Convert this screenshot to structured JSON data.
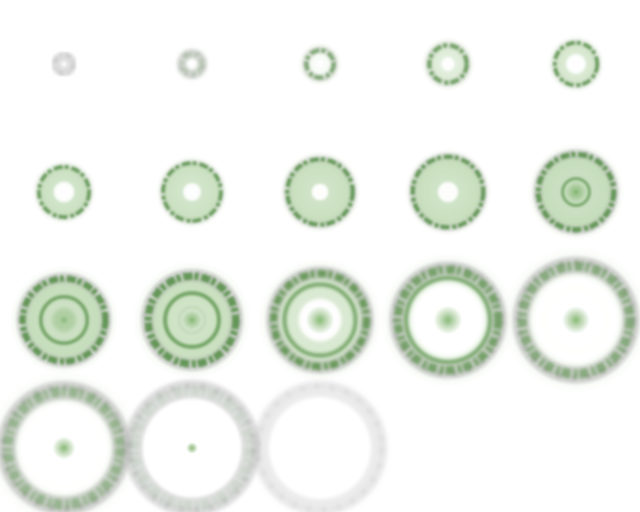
{
  "sprite_sheet": {
    "grid": {
      "columns": 5,
      "rows": 4
    },
    "palette": {
      "background": "#ffffff",
      "green_dark": "#4e8a3e",
      "green_mid": "#7fb26b",
      "green_light": "#c6e0b8",
      "grey_ring": "#8a8a8a",
      "grey_soft": "#b5b5b5"
    },
    "frames": [
      {
        "index": 1,
        "radius": 0.06,
        "ring_width": 0.05,
        "green_level": 0.0,
        "fill_level": 0.0,
        "inner_ring": 0.0,
        "white_core": 0.0,
        "center_spot": 0.0,
        "grey_level": 0.6,
        "blur": 0.4
      },
      {
        "index": 2,
        "radius": 0.08,
        "ring_width": 0.05,
        "green_level": 0.3,
        "fill_level": 0.0,
        "inner_ring": 0.0,
        "white_core": 0.0,
        "center_spot": 0.0,
        "grey_level": 0.6,
        "blur": 0.4
      },
      {
        "index": 3,
        "radius": 0.11,
        "ring_width": 0.04,
        "green_level": 0.8,
        "fill_level": 0.0,
        "inner_ring": 0.0,
        "white_core": 0.15,
        "center_spot": 0.0,
        "grey_level": 0.4,
        "blur": 0.3
      },
      {
        "index": 4,
        "radius": 0.15,
        "ring_width": 0.04,
        "green_level": 0.9,
        "fill_level": 0.3,
        "inner_ring": 0.0,
        "white_core": 0.35,
        "center_spot": 0.0,
        "grey_level": 0.3,
        "blur": 0.3
      },
      {
        "index": 5,
        "radius": 0.17,
        "ring_width": 0.035,
        "green_level": 1.0,
        "fill_level": 0.4,
        "inner_ring": 0.0,
        "white_core": 0.45,
        "center_spot": 0.0,
        "grey_level": 0.2,
        "blur": 0.3
      },
      {
        "index": 6,
        "radius": 0.2,
        "ring_width": 0.035,
        "green_level": 1.0,
        "fill_level": 0.55,
        "inner_ring": 0.0,
        "white_core": 0.4,
        "center_spot": 0.0,
        "grey_level": 0.2,
        "blur": 0.3
      },
      {
        "index": 7,
        "radius": 0.23,
        "ring_width": 0.035,
        "green_level": 1.0,
        "fill_level": 0.55,
        "inner_ring": 0.0,
        "white_core": 0.3,
        "center_spot": 0.0,
        "grey_level": 0.25,
        "blur": 0.3
      },
      {
        "index": 8,
        "radius": 0.26,
        "ring_width": 0.04,
        "green_level": 1.0,
        "fill_level": 0.6,
        "inner_ring": 0.0,
        "white_core": 0.25,
        "center_spot": 0.0,
        "grey_level": 0.35,
        "blur": 0.3
      },
      {
        "index": 9,
        "radius": 0.28,
        "ring_width": 0.04,
        "green_level": 1.0,
        "fill_level": 0.6,
        "inner_ring": 0.0,
        "white_core": 0.28,
        "center_spot": 0.0,
        "grey_level": 0.4,
        "blur": 0.3
      },
      {
        "index": 10,
        "radius": 0.3,
        "ring_width": 0.05,
        "green_level": 1.0,
        "fill_level": 0.65,
        "inner_ring": 0.35,
        "white_core": 0.0,
        "center_spot": 0.3,
        "grey_level": 0.5,
        "blur": 0.3
      },
      {
        "index": 11,
        "radius": 0.33,
        "ring_width": 0.06,
        "green_level": 1.0,
        "fill_level": 0.65,
        "inner_ring": 0.55,
        "white_core": 0.15,
        "center_spot": 0.35,
        "grey_level": 0.55,
        "blur": 0.35
      },
      {
        "index": 12,
        "radius": 0.35,
        "ring_width": 0.07,
        "green_level": 1.0,
        "fill_level": 0.6,
        "inner_ring": 0.6,
        "white_core": 0.25,
        "center_spot": 0.35,
        "grey_level": 0.6,
        "blur": 0.35
      },
      {
        "index": 13,
        "radius": 0.37,
        "ring_width": 0.07,
        "green_level": 0.95,
        "fill_level": 0.4,
        "inner_ring": 0.75,
        "white_core": 0.45,
        "center_spot": 0.3,
        "grey_level": 0.65,
        "blur": 0.4
      },
      {
        "index": 14,
        "radius": 0.4,
        "ring_width": 0.08,
        "green_level": 0.85,
        "fill_level": 0.05,
        "inner_ring": 0.82,
        "white_core": 0.7,
        "center_spot": 0.28,
        "grey_level": 0.7,
        "blur": 0.45
      },
      {
        "index": 15,
        "radius": 0.43,
        "ring_width": 0.09,
        "green_level": 0.7,
        "fill_level": 0.0,
        "inner_ring": 0.0,
        "white_core": 0.78,
        "center_spot": 0.25,
        "grey_level": 0.7,
        "blur": 0.5
      },
      {
        "index": 16,
        "radius": 0.45,
        "ring_width": 0.1,
        "green_level": 0.55,
        "fill_level": 0.0,
        "inner_ring": 0.0,
        "white_core": 0.78,
        "center_spot": 0.2,
        "grey_level": 0.7,
        "blur": 0.55
      },
      {
        "index": 17,
        "radius": 0.46,
        "ring_width": 0.1,
        "green_level": 0.15,
        "fill_level": 0.0,
        "inner_ring": 0.0,
        "white_core": 0.8,
        "center_spot": 0.1,
        "grey_level": 0.55,
        "blur": 0.6
      },
      {
        "index": 18,
        "radius": 0.46,
        "ring_width": 0.09,
        "green_level": 0.0,
        "fill_level": 0.0,
        "inner_ring": 0.0,
        "white_core": 0.84,
        "center_spot": 0.0,
        "grey_level": 0.35,
        "blur": 0.65
      }
    ]
  }
}
